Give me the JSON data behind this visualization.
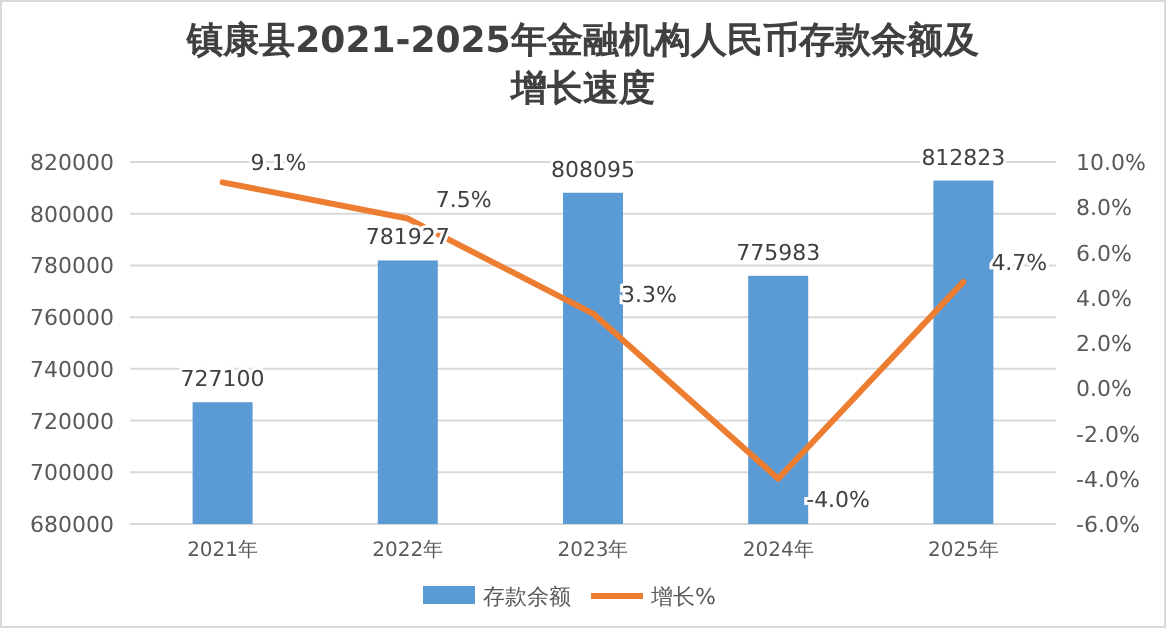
{
  "chart_data": {
    "type": "bar",
    "title": "镇康县2021-2025年金融机构人民币存款余额及增长速度",
    "categories": [
      "2021年",
      "2022年",
      "2023年",
      "2024年",
      "2025年"
    ],
    "series": [
      {
        "name": "存款余额",
        "color": "#5b9bd5",
        "values": [
          727100,
          781927,
          808095,
          775983,
          812823
        ]
      },
      {
        "name": "增长%",
        "type": "line",
        "axis": "y2",
        "color": "#ed7d31",
        "values": [
          9.1,
          7.5,
          3.3,
          -4.0,
          4.7
        ],
        "value_labels": [
          "9.1%",
          "7.5%",
          "3.3%",
          "-4.0%",
          "4.7%"
        ]
      }
    ],
    "data_labels": true,
    "ylim": [
      680000,
      820000
    ],
    "yticks": [
      680000,
      700000,
      720000,
      740000,
      760000,
      780000,
      800000,
      820000
    ],
    "y2lim": [
      -6,
      10
    ],
    "y2ticks": [
      {
        "value": -6,
        "label": "-6.0%"
      },
      {
        "value": -4,
        "label": "-4.0%"
      },
      {
        "value": -2,
        "label": "-2.0%"
      },
      {
        "value": 0,
        "label": "0.0%"
      },
      {
        "value": 2,
        "label": "2.0%"
      },
      {
        "value": 4,
        "label": "4.0%"
      },
      {
        "value": 6,
        "label": "6.0%"
      },
      {
        "value": 8,
        "label": "8.0%"
      },
      {
        "value": 10,
        "label": "10.0%"
      }
    ],
    "grid": "y",
    "legend": "bottom"
  }
}
